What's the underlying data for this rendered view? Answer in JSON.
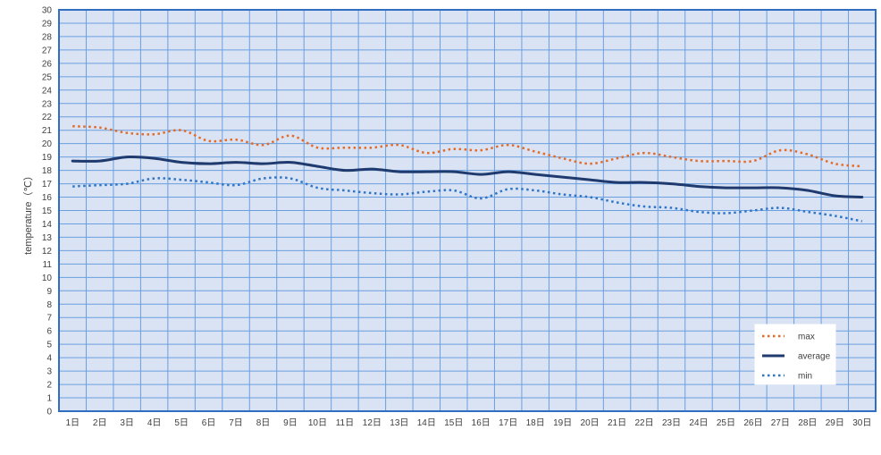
{
  "chart_data": {
    "type": "line",
    "title": "",
    "xlabel": "",
    "ylabel": "temperature（℃）",
    "ylim": [
      0,
      30
    ],
    "y_ticks": [
      "0",
      "1",
      "2",
      "3",
      "4",
      "5",
      "6",
      "7",
      "8",
      "9",
      "10",
      "11",
      "12",
      "13",
      "14",
      "15",
      "16",
      "17",
      "18",
      "19",
      "20",
      "21",
      "22",
      "23",
      "24",
      "25",
      "26",
      "27",
      "28",
      "29",
      "30"
    ],
    "categories": [
      "1日",
      "2日",
      "3日",
      "4日",
      "5日",
      "6日",
      "7日",
      "8日",
      "9日",
      "10日",
      "11日",
      "12日",
      "13日",
      "14日",
      "15日",
      "16日",
      "17日",
      "18日",
      "19日",
      "20日",
      "21日",
      "22日",
      "23日",
      "24日",
      "25日",
      "26日",
      "27日",
      "28日",
      "29日",
      "30日"
    ],
    "grid": true,
    "legend_position": "bottom-right",
    "series": [
      {
        "name": "max",
        "style": "dotted",
        "color": "#e26b2a",
        "values": [
          21.3,
          21.2,
          20.8,
          20.7,
          21.0,
          20.2,
          20.3,
          19.9,
          20.6,
          19.7,
          19.7,
          19.7,
          19.9,
          19.3,
          19.6,
          19.5,
          19.9,
          19.4,
          18.9,
          18.5,
          18.9,
          19.3,
          19.0,
          18.7,
          18.7,
          18.7,
          19.5,
          19.2,
          18.5,
          18.3
        ]
      },
      {
        "name": "average",
        "style": "solid",
        "color": "#1f3a6e",
        "values": [
          18.7,
          18.7,
          19.0,
          18.9,
          18.6,
          18.5,
          18.6,
          18.5,
          18.6,
          18.3,
          18.0,
          18.1,
          17.9,
          17.9,
          17.9,
          17.7,
          17.9,
          17.7,
          17.5,
          17.3,
          17.1,
          17.1,
          17.0,
          16.8,
          16.7,
          16.7,
          16.7,
          16.5,
          16.1,
          16.0
        ]
      },
      {
        "name": "min",
        "style": "dotted",
        "color": "#2e75c7",
        "values": [
          16.8,
          16.9,
          17.0,
          17.4,
          17.3,
          17.1,
          16.9,
          17.4,
          17.4,
          16.7,
          16.5,
          16.3,
          16.2,
          16.4,
          16.5,
          15.9,
          16.6,
          16.5,
          16.2,
          16.0,
          15.6,
          15.3,
          15.2,
          14.9,
          14.8,
          15.0,
          15.2,
          14.9,
          14.6,
          14.2
        ]
      }
    ],
    "colors": {
      "plot_background": "#dae3f3",
      "grid": "#6a9fe0",
      "frame": "#2f6ec0"
    }
  }
}
